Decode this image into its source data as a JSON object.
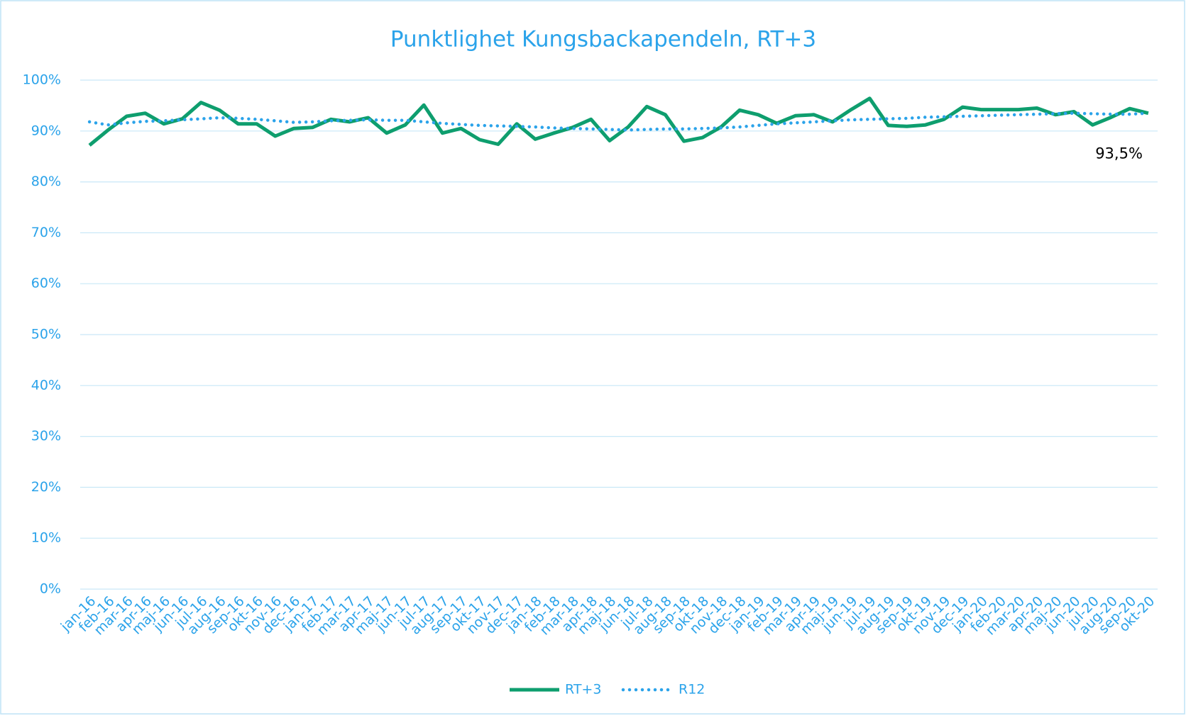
{
  "chart_data": {
    "type": "line",
    "title": "Punktlighet Kungsbackapendeln, RT+3",
    "categories": [
      "jan-16",
      "feb-16",
      "mar-16",
      "apr-16",
      "maj-16",
      "jun-16",
      "jul-16",
      "aug-16",
      "sep-16",
      "okt-16",
      "nov-16",
      "dec-16",
      "jan-17",
      "feb-17",
      "mar-17",
      "apr-17",
      "maj-17",
      "jun-17",
      "jul-17",
      "aug-17",
      "sep-17",
      "okt-17",
      "nov-17",
      "dec-17",
      "jan-18",
      "feb-18",
      "mar-18",
      "apr-18",
      "maj-18",
      "jun-18",
      "jul-18",
      "aug-18",
      "sep-18",
      "okt-18",
      "nov-18",
      "dec-18",
      "jan-19",
      "feb-19",
      "mar-19",
      "apr-19",
      "maj-19",
      "jun-19",
      "jul-19",
      "aug-19",
      "sep-19",
      "okt-19",
      "nov-19",
      "dec-19",
      "jan-20",
      "feb-20",
      "mar-20",
      "apr-20",
      "maj-20",
      "jun-20",
      "jul-20",
      "aug-20",
      "sep-20",
      "okt-20"
    ],
    "series": [
      {
        "name": "RT+3",
        "color": "#0e9e6e",
        "style": "solid",
        "values": [
          87.2,
          90.2,
          92.9,
          93.5,
          91.4,
          92.4,
          95.6,
          94.1,
          91.4,
          91.4,
          89.0,
          90.5,
          90.7,
          92.3,
          91.8,
          92.6,
          89.6,
          91.2,
          95.1,
          89.6,
          90.5,
          88.3,
          87.4,
          91.4,
          88.4,
          89.6,
          90.7,
          92.3,
          88.1,
          90.8,
          94.8,
          93.2,
          88.0,
          88.7,
          90.8,
          94.1,
          93.2,
          91.5,
          93.0,
          93.2,
          91.8,
          94.2,
          96.4,
          91.1,
          90.9,
          91.2,
          92.3,
          94.7,
          94.2,
          94.2,
          94.2,
          94.5,
          93.2,
          93.8,
          91.2,
          92.7,
          94.4,
          93.5
        ]
      },
      {
        "name": "R12",
        "color": "#2ba3ea",
        "style": "dotted",
        "values": [
          91.8,
          91.2,
          91.6,
          91.9,
          92.0,
          92.2,
          92.4,
          92.6,
          92.5,
          92.3,
          92.0,
          91.7,
          91.8,
          92.0,
          92.1,
          92.2,
          92.1,
          92.1,
          91.8,
          91.5,
          91.3,
          91.1,
          91.0,
          90.9,
          90.8,
          90.6,
          90.5,
          90.4,
          90.3,
          90.2,
          90.3,
          90.4,
          90.4,
          90.5,
          90.6,
          90.8,
          91.1,
          91.4,
          91.6,
          91.8,
          92.0,
          92.2,
          92.3,
          92.4,
          92.5,
          92.7,
          92.8,
          92.9,
          93.0,
          93.1,
          93.2,
          93.3,
          93.4,
          93.5,
          93.4,
          93.3,
          93.3,
          93.5
        ]
      }
    ],
    "annotation": "93,5%",
    "ylim": [
      0,
      100
    ],
    "yticks": [
      {
        "value": 0,
        "label": "0%"
      },
      {
        "value": 10,
        "label": "10%"
      },
      {
        "value": 20,
        "label": "20%"
      },
      {
        "value": 30,
        "label": "30%"
      },
      {
        "value": 40,
        "label": "40%"
      },
      {
        "value": 50,
        "label": "50%"
      },
      {
        "value": 60,
        "label": "60%"
      },
      {
        "value": 70,
        "label": "70%"
      },
      {
        "value": 80,
        "label": "80%"
      },
      {
        "value": 90,
        "label": "90%"
      },
      {
        "value": 100,
        "label": "100%"
      }
    ],
    "grid": true,
    "legend": "bottom"
  }
}
